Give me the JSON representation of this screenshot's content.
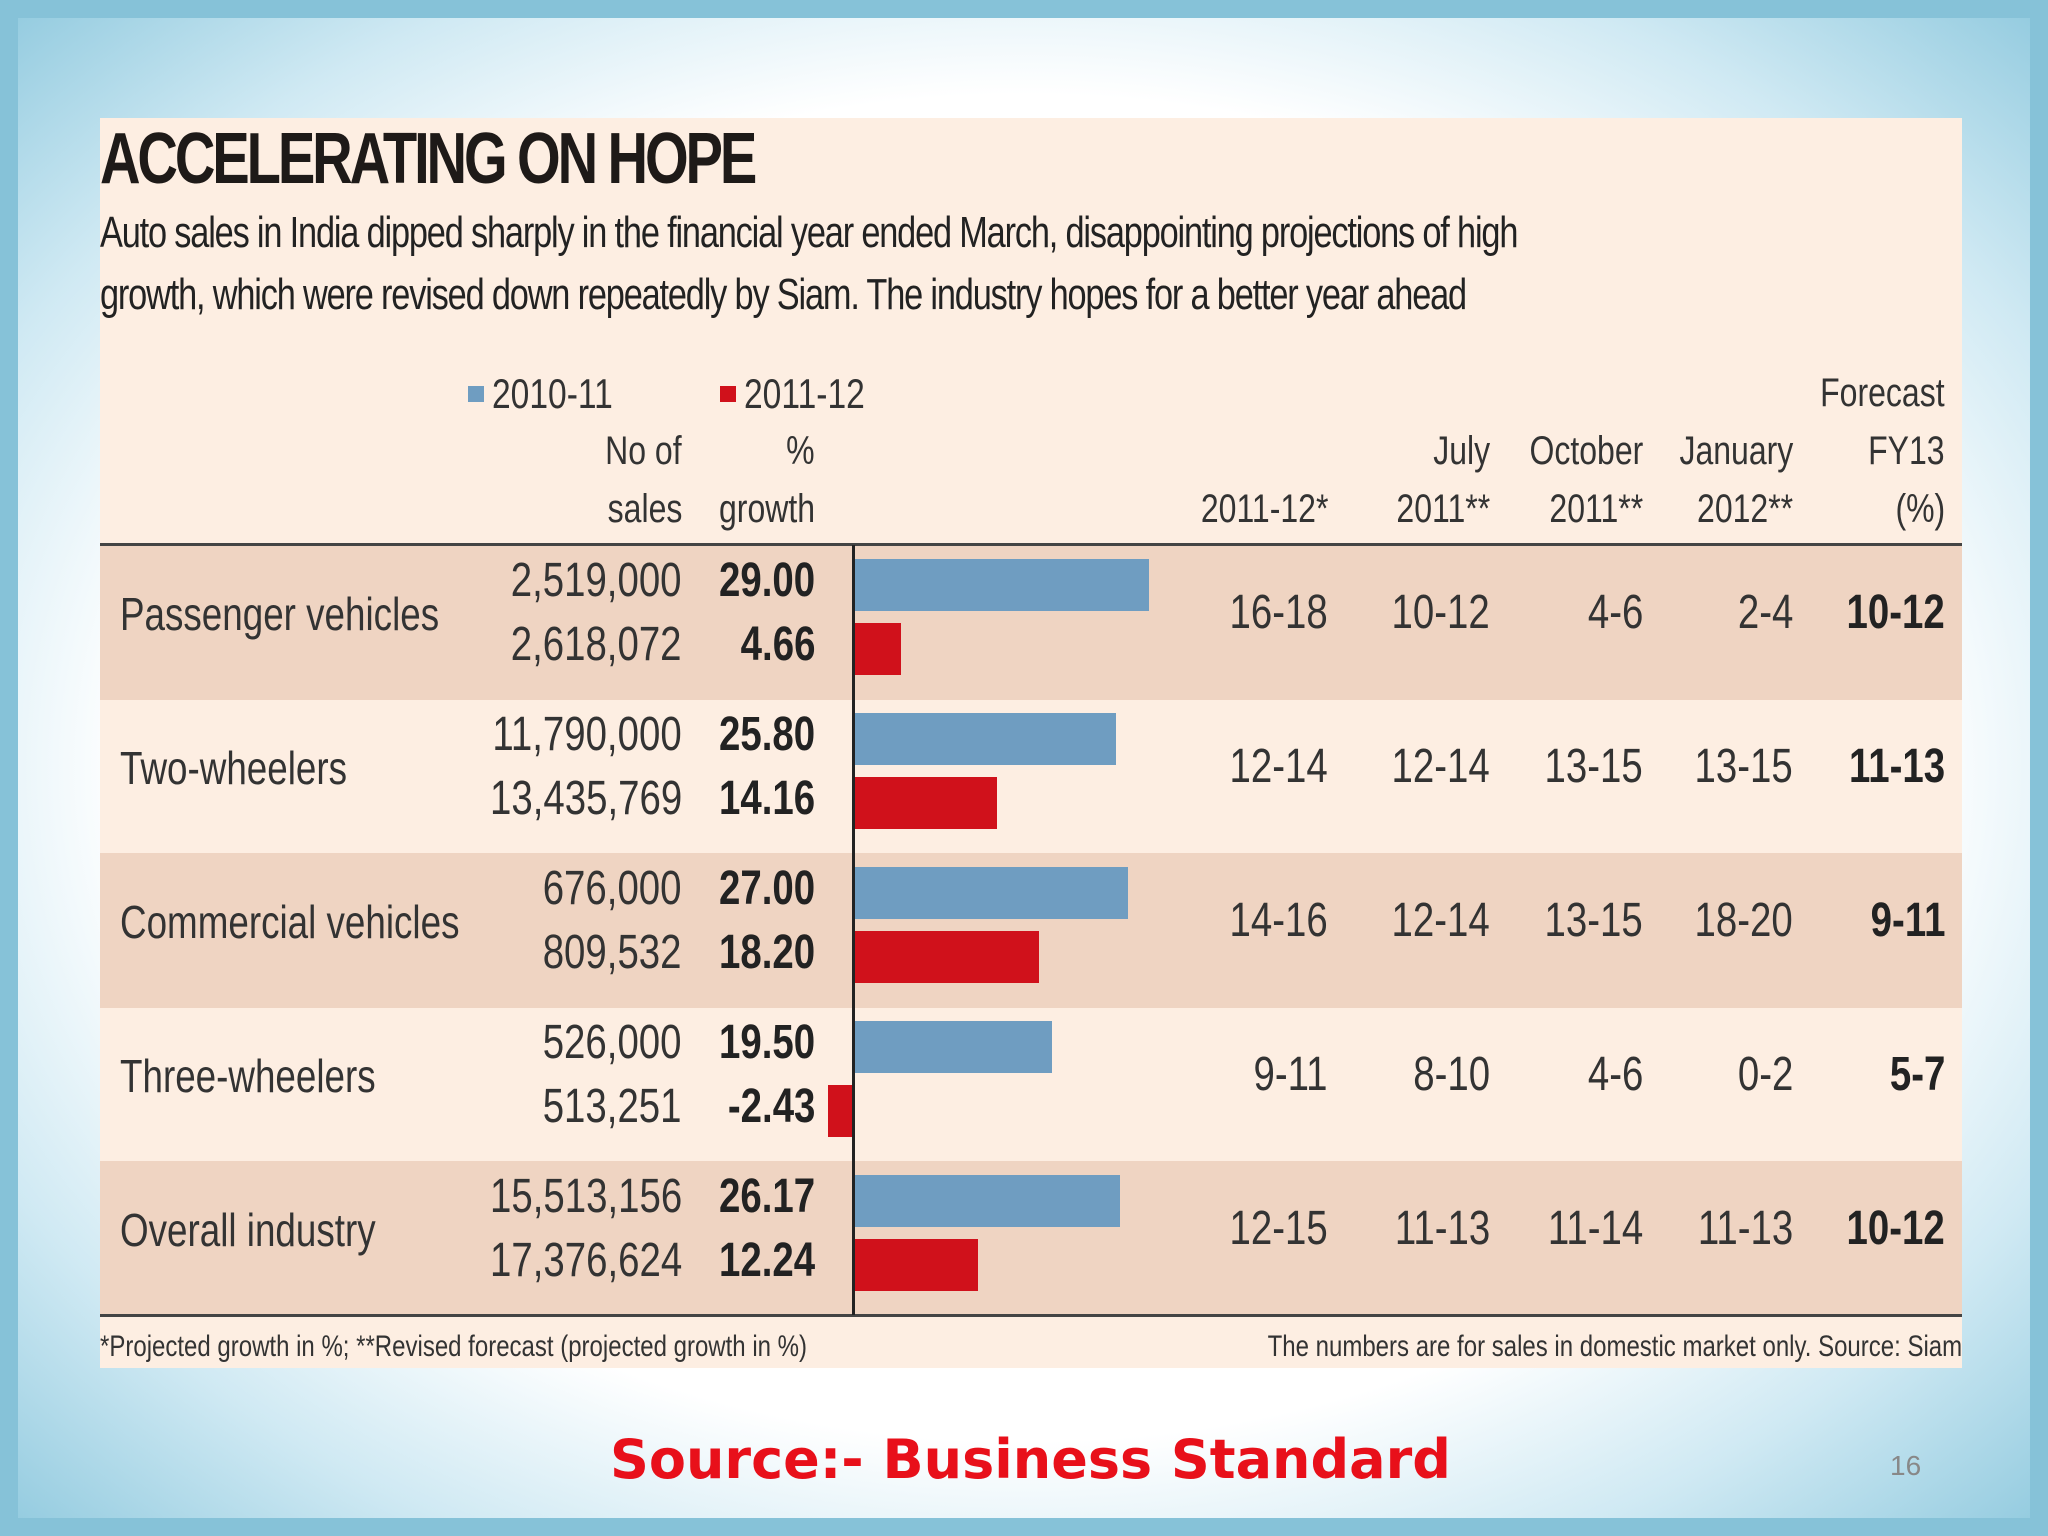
{
  "title": "ACCELERATING ON HOPE",
  "subtitle": [
    "Auto sales in India dipped sharply in the financial year ended March, disappointing projections of high",
    "growth, which were revised down repeatedly by Siam. The industry hopes for a better year ahead"
  ],
  "legend": [
    {
      "label": "2010-11",
      "color": "#6f9dc1"
    },
    {
      "label": "2011-12",
      "color": "#d0111b"
    }
  ],
  "headers": {
    "sales": [
      "No of",
      "sales"
    ],
    "growth": [
      "%",
      "growth"
    ],
    "proj": [
      "",
      "",
      "2011-12*"
    ],
    "july": [
      "",
      "July",
      "2011**"
    ],
    "oct": [
      "",
      "October",
      "2011**"
    ],
    "jan": [
      "",
      "January",
      "2012**"
    ],
    "fy13": [
      "Forecast",
      "FY13",
      "(%)"
    ]
  },
  "rows": [
    {
      "label": "Passenger vehicles",
      "sales": [
        "2,519,000",
        "2,618,072"
      ],
      "growth": [
        "29.00",
        "4.66"
      ],
      "proj": "16-18",
      "july": "10-12",
      "oct": "4-6",
      "jan": "2-4",
      "fy13": "10-12"
    },
    {
      "label": "Two-wheelers",
      "sales": [
        "11,790,000",
        "13,435,769"
      ],
      "growth": [
        "25.80",
        "14.16"
      ],
      "proj": "12-14",
      "july": "12-14",
      "oct": "13-15",
      "jan": "13-15",
      "fy13": "11-13"
    },
    {
      "label": "Commercial vehicles",
      "sales": [
        "676,000",
        "809,532"
      ],
      "growth": [
        "27.00",
        "18.20"
      ],
      "proj": "14-16",
      "july": "12-14",
      "oct": "13-15",
      "jan": "18-20",
      "fy13": "9-11"
    },
    {
      "label": "Three-wheelers",
      "sales": [
        "526,000",
        "513,251"
      ],
      "growth": [
        "19.50",
        "-2.43"
      ],
      "proj": "9-11",
      "july": "8-10",
      "oct": "4-6",
      "jan": "0-2",
      "fy13": "5-7"
    },
    {
      "label": "Overall industry",
      "sales": [
        "15,513,156",
        "17,376,624"
      ],
      "growth": [
        "26.17",
        "12.24"
      ],
      "proj": "12-15",
      "july": "11-13",
      "oct": "11-14",
      "jan": "11-13",
      "fy13": "10-12"
    }
  ],
  "footnote_left": "*Projected growth in %; **Revised forecast (projected growth in %)",
  "footnote_right": "The numbers are for sales in domestic market only. Source: Siam",
  "source": "Source:- Business Standard",
  "page_number": "16",
  "chart_data": {
    "type": "bar",
    "orientation": "horizontal",
    "categories": [
      "Passenger vehicles",
      "Two-wheelers",
      "Commercial vehicles",
      "Three-wheelers",
      "Overall industry"
    ],
    "series": [
      {
        "name": "2010-11",
        "values": [
          29.0,
          25.8,
          27.0,
          19.5,
          26.17
        ],
        "color": "#6f9dc1"
      },
      {
        "name": "2011-12",
        "values": [
          4.66,
          14.16,
          18.2,
          -2.43,
          12.24
        ],
        "color": "#d0111b"
      }
    ],
    "title": "ACCELERATING ON HOPE",
    "xlabel": "% growth",
    "grid": false,
    "legend": "top"
  }
}
